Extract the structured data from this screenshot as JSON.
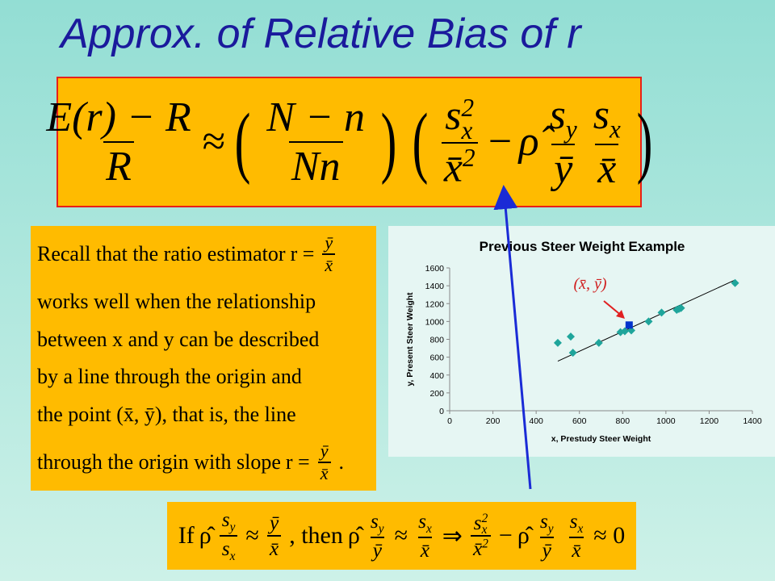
{
  "title": "Approx. of Relative Bias of r",
  "formula_top": [
    {
      "num": "E(r) − R",
      "den": "R"
    },
    "≈",
    "(",
    {
      "num": "N − n",
      "den": "Nn"
    },
    ")",
    "(",
    {
      "num": {
        "base": "s",
        "sub": "x",
        "sup": "2"
      },
      "den": {
        "base": "x̄",
        "sup": "2"
      }
    },
    "−",
    "ρ̂",
    {
      "num": {
        "base": "s",
        "sub": "y"
      },
      "den": "ȳ"
    },
    {
      "num": {
        "base": "s",
        "sub": "x"
      },
      "den": "x̄"
    },
    ")"
  ],
  "recall_lines": [
    [
      "Recall that the ratio estimator",
      "r =",
      {
        "num": "ȳ",
        "den": "x̄"
      }
    ],
    [
      "works well when the relationship"
    ],
    [
      "between x and y can be described"
    ],
    [
      "by a line through the origin and"
    ],
    [
      "the point (x̄, ȳ), that is, the line"
    ],
    [
      "through the origin with slope",
      "r =",
      {
        "num": "ȳ",
        "den": "x̄"
      },
      "."
    ]
  ],
  "formula_bottom": [
    "If",
    "ρ̂",
    {
      "num": {
        "base": "s",
        "sub": "y"
      },
      "den": {
        "base": "s",
        "sub": "x"
      }
    },
    "≈",
    {
      "num": "ȳ",
      "den": "x̄"
    },
    ", then",
    "ρ̂",
    {
      "num": {
        "base": "s",
        "sub": "y"
      },
      "den": "ȳ"
    },
    "≈",
    {
      "num": {
        "base": "s",
        "sub": "x"
      },
      "den": "x̄"
    },
    "⇒",
    {
      "num": {
        "base": "s",
        "sub": "x",
        "sup": "2"
      },
      "den": {
        "base": "x̄",
        "sup": "2"
      }
    },
    "−",
    "ρ̂",
    {
      "num": {
        "base": "s",
        "sub": "y"
      },
      "den": "ȳ"
    },
    {
      "num": {
        "base": "s",
        "sub": "x"
      },
      "den": "x̄"
    },
    "≈ 0"
  ],
  "chart_data": {
    "type": "scatter",
    "title": "Previous Steer Weight Example",
    "x_label": "x, Prestudy  Steer Weight",
    "y_label": "y, Present Steer Weight",
    "xlim": [
      0,
      1400
    ],
    "xticks": [
      0,
      200,
      400,
      600,
      800,
      1000,
      1200,
      1400
    ],
    "ylim": [
      0,
      1600
    ],
    "yticks": [
      0,
      200,
      400,
      600,
      800,
      1000,
      1200,
      1400,
      1600
    ],
    "series": [
      {
        "color": "#1fa59b",
        "marker": "diamond",
        "x": [
          500,
          560,
          570,
          690,
          790,
          810,
          840,
          920,
          980,
          1050,
          1060,
          1070,
          1320
        ],
        "values": [
          760,
          830,
          650,
          760,
          880,
          890,
          900,
          1000,
          1100,
          1130,
          1140,
          1150,
          1430
        ]
      },
      {
        "color": "#0033cc",
        "marker": "square",
        "x": [
          830
        ],
        "values": [
          960
        ]
      }
    ],
    "trendline": {
      "color": "#000000",
      "x": [
        500,
        1320
      ],
      "values": [
        555,
        1465
      ]
    },
    "annotation": "(x̄, ȳ)"
  }
}
